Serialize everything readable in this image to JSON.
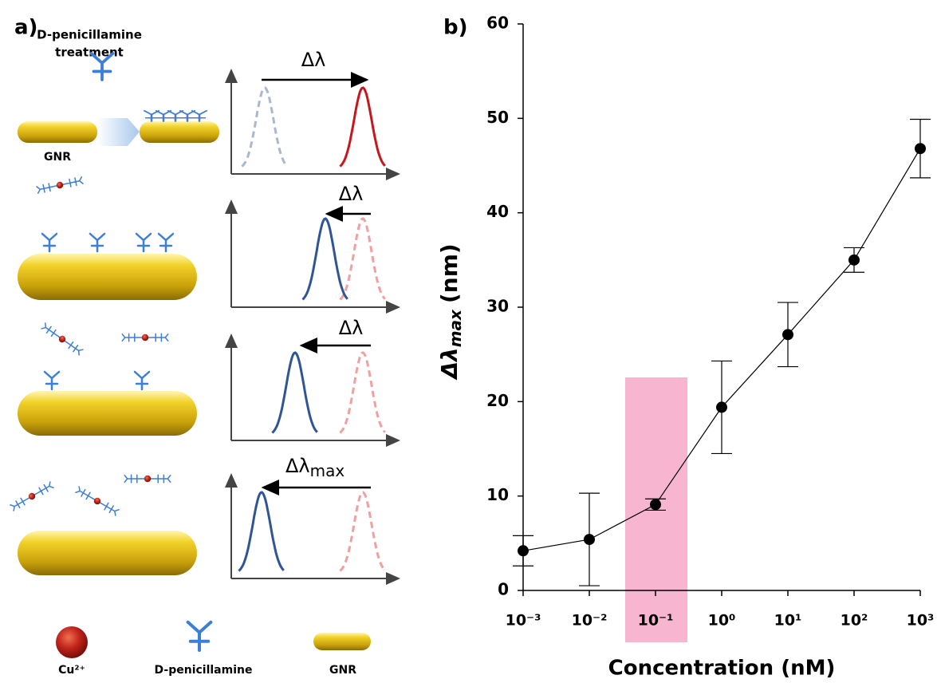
{
  "panel_a": {
    "label": "a)",
    "treatment": [
      "D-penicillamine",
      "treatment"
    ],
    "rod_label": "GNR",
    "shifts": [
      "Δλ",
      "Δλ",
      "Δλ"
    ],
    "shift_max": {
      "symbol": "Δλ",
      "subscript": "max"
    },
    "legend": [
      "Cu²⁺",
      "D-penicillamine",
      "GNR"
    ]
  },
  "chart_data": {
    "type": "line",
    "panel_label": "b)",
    "xlabel": "Concentration (nM)",
    "ylabel": {
      "symbol": "Δλ",
      "subscript": "max",
      "unit": "(nm)"
    },
    "xscale": "log",
    "x": [
      0.001,
      0.01,
      0.1,
      1,
      10,
      100,
      1000
    ],
    "series": [
      {
        "color": "#000000",
        "values": [
          4.2,
          5.4,
          9.1,
          19.4,
          27.1,
          35.0,
          46.8
        ],
        "errors": [
          1.6,
          4.9,
          0.6,
          4.9,
          3.4,
          1.3,
          3.1
        ]
      }
    ],
    "xlim": [
      0.001,
      1000
    ],
    "xticks": [
      {
        "value": 0.001,
        "label": "10⁻³"
      },
      {
        "value": 0.01,
        "label": "10⁻²"
      },
      {
        "value": 0.1,
        "label": "10⁻¹"
      },
      {
        "value": 1,
        "label": "10⁰"
      },
      {
        "value": 10,
        "label": "10¹"
      },
      {
        "value": 100,
        "label": "10²"
      },
      {
        "value": 1000,
        "label": "10³"
      }
    ],
    "ylim": [
      0,
      60
    ],
    "yticks": [
      0,
      10,
      20,
      30,
      40,
      50,
      60
    ],
    "grid": false
  }
}
